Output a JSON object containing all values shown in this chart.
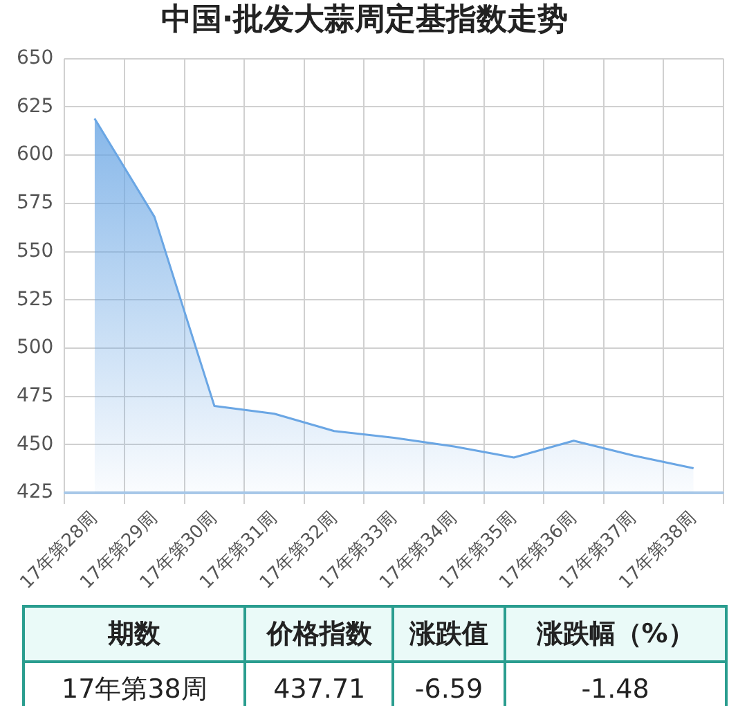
{
  "chart_data": {
    "type": "area",
    "title": "中国·批发大蒜周定基指数走势",
    "categories": [
      "17年第28周",
      "17年第29周",
      "17年第30周",
      "17年第31周",
      "17年第32周",
      "17年第33周",
      "17年第34周",
      "17年第35周",
      "17年第36周",
      "17年第37周",
      "17年第38周"
    ],
    "values": [
      619,
      568,
      470,
      466,
      457,
      453.5,
      449,
      443.3,
      452,
      444.3,
      437.71
    ],
    "color": "#6aa6e4",
    "ylim": [
      425,
      650
    ],
    "yticks": [
      425,
      450,
      475,
      500,
      525,
      550,
      575,
      600,
      625,
      650
    ],
    "grid": true,
    "legend": false,
    "marker": "none",
    "annotations": [
      "期数",
      "价格指数",
      "涨跌值",
      "涨跌幅（%）",
      "17年第38周",
      "437.71",
      "-6.59",
      "-1.48"
    ]
  }
}
